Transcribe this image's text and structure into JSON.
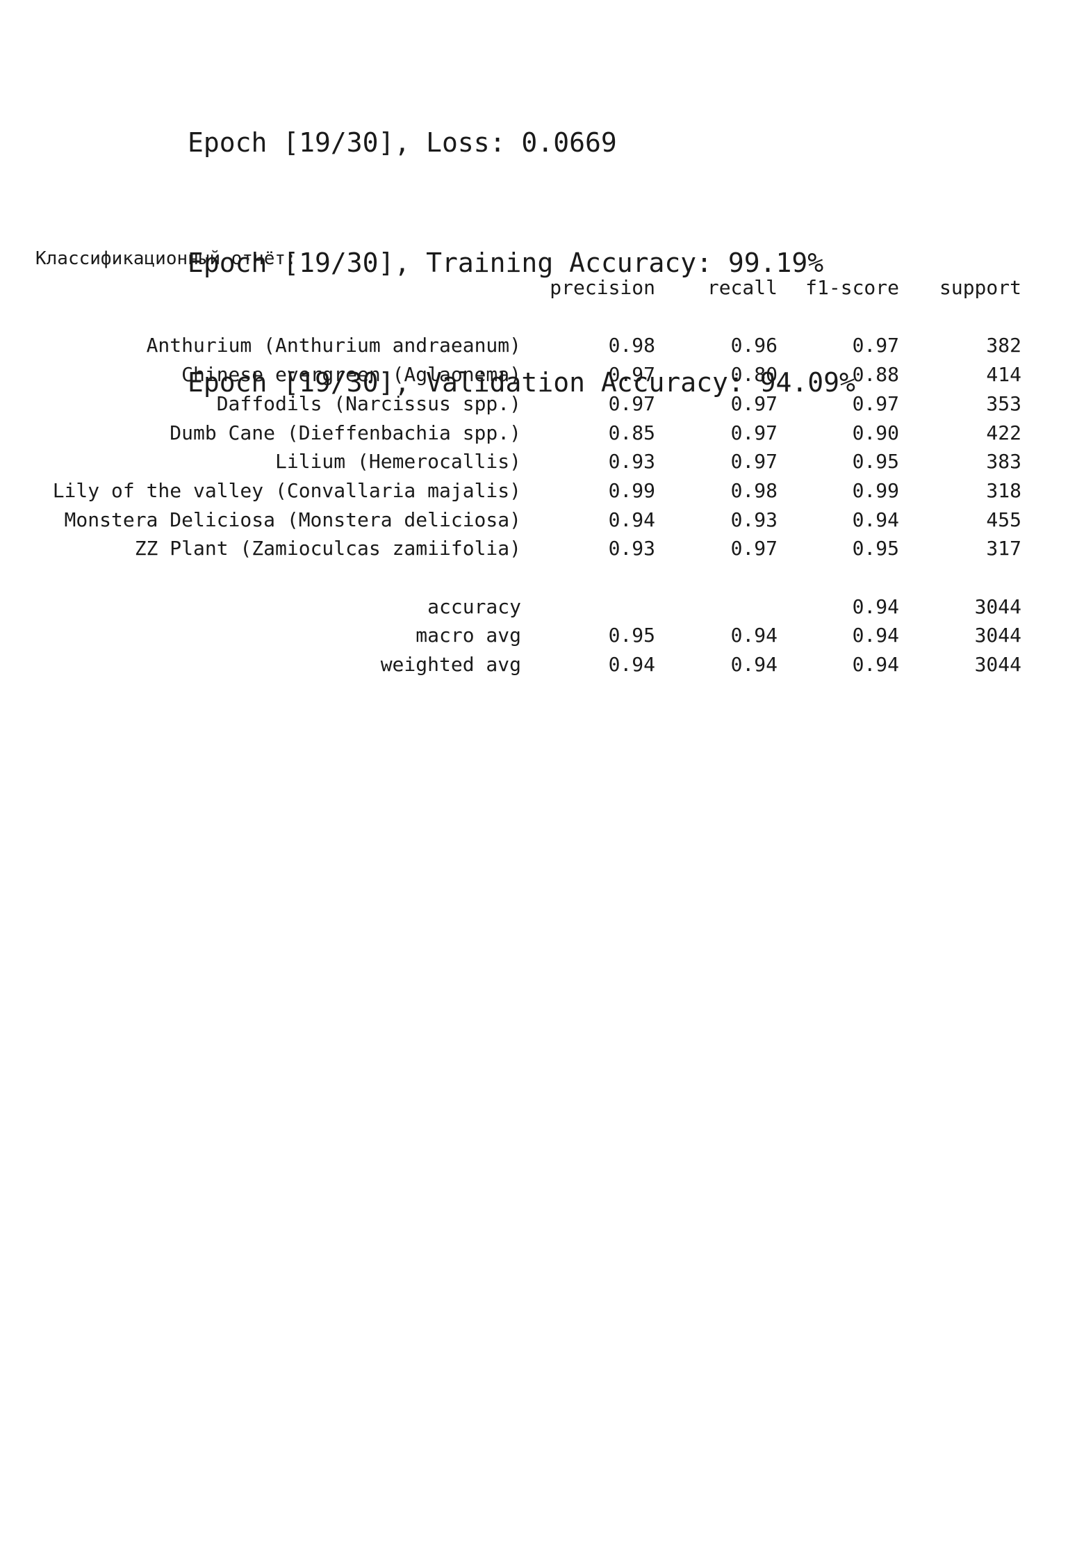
{
  "epoch_log": [
    "Epoch [19/30], Loss: 0.0669",
    "Epoch [19/30], Training Accuracy: 99.19%",
    "Epoch [19/30], Validation Accuracy: 94.09%"
  ],
  "report": {
    "title": "Классификационный отчёт:",
    "headers": {
      "precision": "precision",
      "recall": "recall",
      "f1": "f1-score",
      "support": "support"
    },
    "classes": [
      {
        "label": "Anthurium (Anthurium andraeanum)",
        "precision": "0.98",
        "recall": "0.96",
        "f1": "0.97",
        "support": "382"
      },
      {
        "label": "Chinese evergreen (Aglaonema)",
        "precision": "0.97",
        "recall": "0.80",
        "f1": "0.88",
        "support": "414"
      },
      {
        "label": "Daffodils (Narcissus spp.)",
        "precision": "0.97",
        "recall": "0.97",
        "f1": "0.97",
        "support": "353"
      },
      {
        "label": "Dumb Cane (Dieffenbachia spp.)",
        "precision": "0.85",
        "recall": "0.97",
        "f1": "0.90",
        "support": "422"
      },
      {
        "label": "Lilium (Hemerocallis)",
        "precision": "0.93",
        "recall": "0.97",
        "f1": "0.95",
        "support": "383"
      },
      {
        "label": "Lily of the valley (Convallaria majalis)",
        "precision": "0.99",
        "recall": "0.98",
        "f1": "0.99",
        "support": "318"
      },
      {
        "label": "Monstera Deliciosa (Monstera deliciosa)",
        "precision": "0.94",
        "recall": "0.93",
        "f1": "0.94",
        "support": "455"
      },
      {
        "label": "ZZ Plant (Zamioculcas zamiifolia)",
        "precision": "0.93",
        "recall": "0.97",
        "f1": "0.95",
        "support": "317"
      }
    ],
    "summary": [
      {
        "label": "accuracy",
        "precision": "",
        "recall": "",
        "f1": "0.94",
        "support": "3044"
      },
      {
        "label": "macro avg",
        "precision": "0.95",
        "recall": "0.94",
        "f1": "0.94",
        "support": "3044"
      },
      {
        "label": "weighted avg",
        "precision": "0.94",
        "recall": "0.94",
        "f1": "0.94",
        "support": "3044"
      }
    ]
  }
}
